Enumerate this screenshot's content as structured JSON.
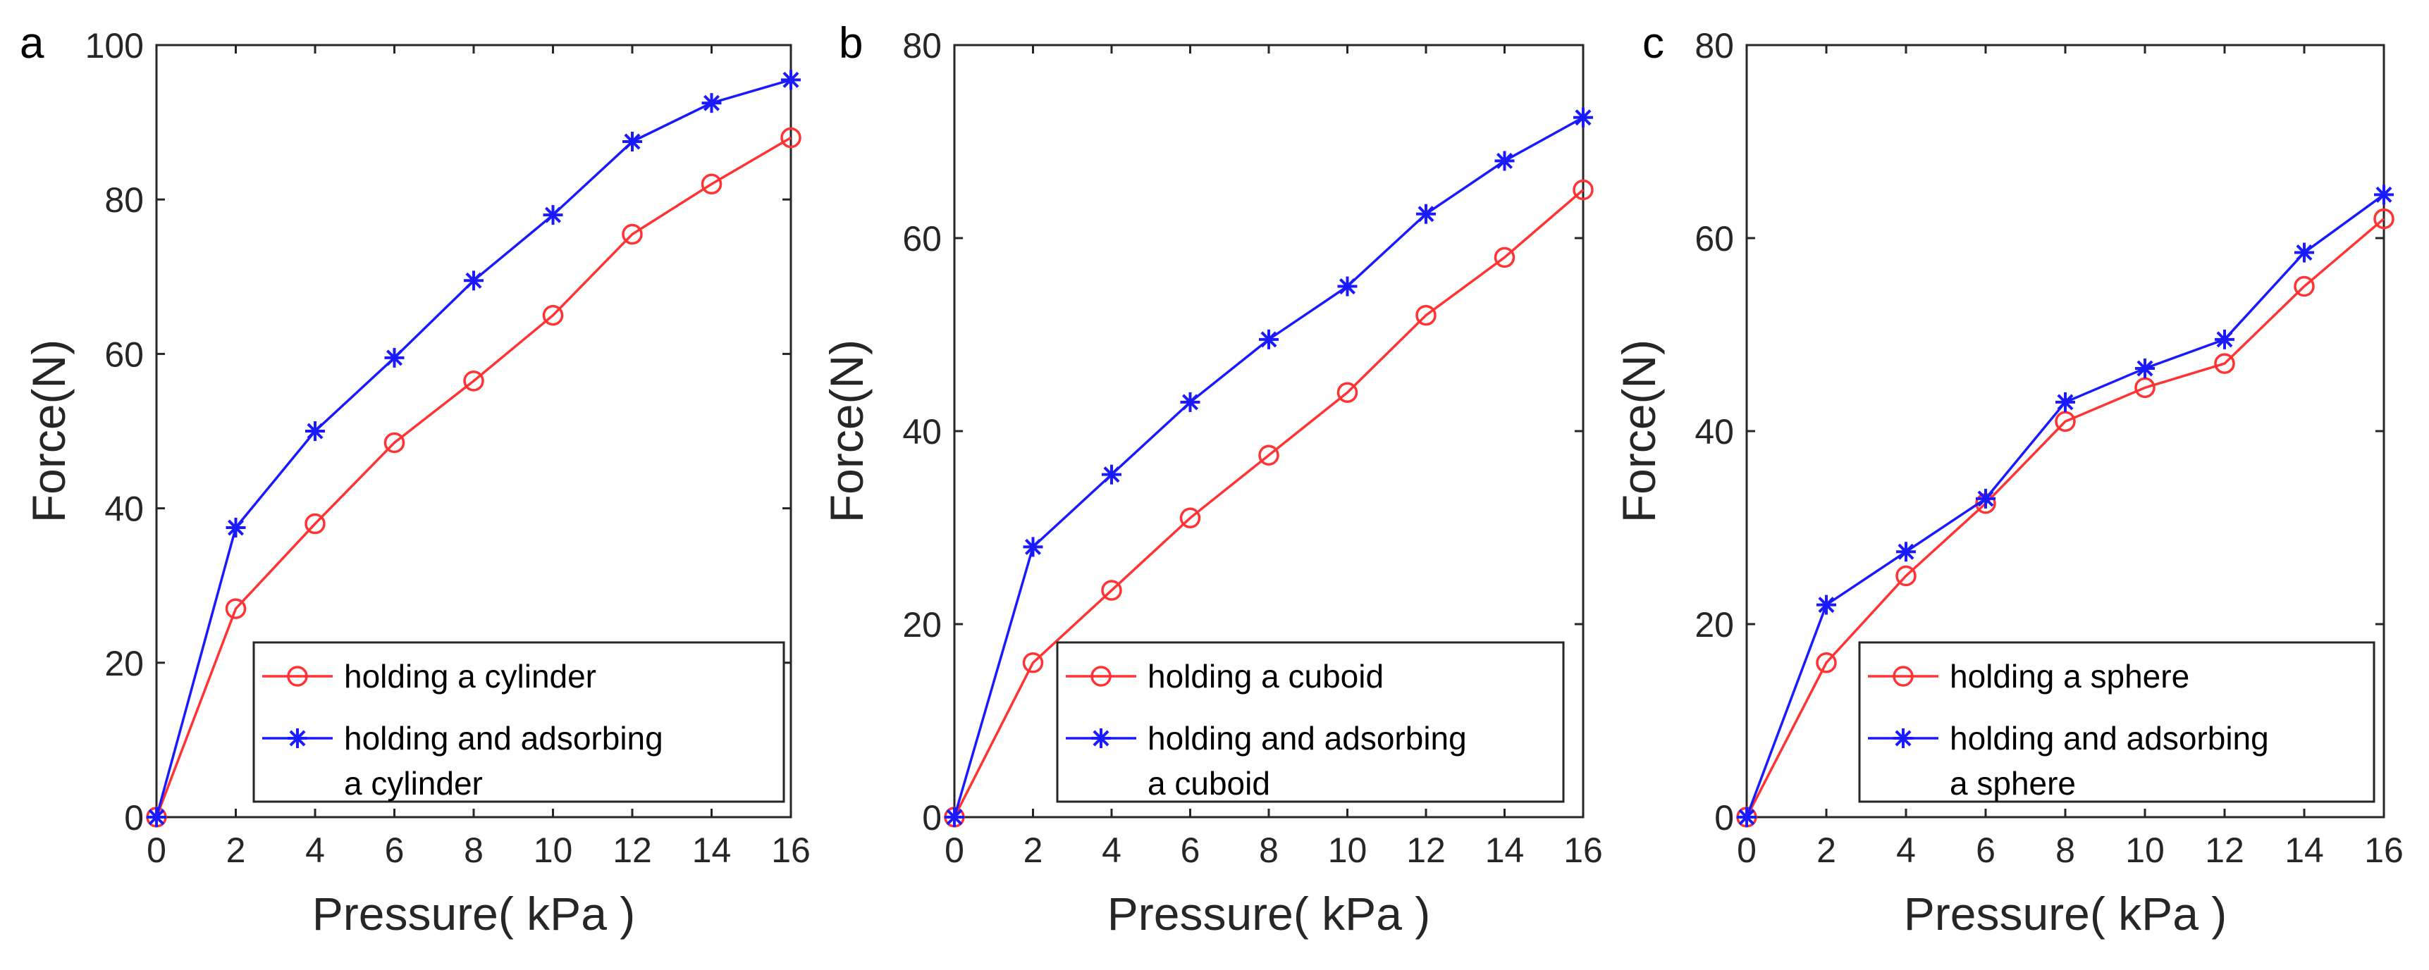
{
  "colors": {
    "series1": "#ff3333",
    "series2": "#1a1aff",
    "axis": "#262626"
  },
  "chart_data": [
    {
      "panel": "a",
      "type": "line",
      "xlabel": "Pressure( kPa )",
      "ylabel": "Force(N)",
      "xlim": [
        0,
        16
      ],
      "ylim": [
        0,
        100
      ],
      "xticks": [
        "0",
        "2",
        "4",
        "6",
        "8",
        "10",
        "12",
        "14",
        "16"
      ],
      "yticks": [
        "0",
        "20",
        "40",
        "60",
        "80",
        "100"
      ],
      "x": [
        0,
        2,
        4,
        6,
        8,
        10,
        12,
        14,
        16
      ],
      "legend_position": "lower-right",
      "series": [
        {
          "name": "holding a cylinder",
          "legend_lines": [
            "holding a cylinder"
          ],
          "marker": "circle",
          "values": [
            0,
            27,
            38,
            48.5,
            56.5,
            65,
            75.5,
            82,
            88
          ]
        },
        {
          "name": "holding and adsorbing a cylinder",
          "legend_lines": [
            "holding and adsorbing",
            "a cylinder"
          ],
          "marker": "star",
          "values": [
            0,
            37.5,
            50,
            59.5,
            69.5,
            78,
            87.5,
            92.5,
            95.5
          ]
        }
      ]
    },
    {
      "panel": "b",
      "type": "line",
      "xlabel": "Pressure( kPa )",
      "ylabel": "Force(N)",
      "xlim": [
        0,
        16
      ],
      "ylim": [
        0,
        80
      ],
      "xticks": [
        "0",
        "2",
        "4",
        "6",
        "8",
        "10",
        "12",
        "14",
        "16"
      ],
      "yticks": [
        "0",
        "20",
        "40",
        "60",
        "80"
      ],
      "x": [
        0,
        2,
        4,
        6,
        8,
        10,
        12,
        14,
        16
      ],
      "legend_position": "lower-right",
      "series": [
        {
          "name": "holding a cuboid",
          "legend_lines": [
            "holding a cuboid"
          ],
          "marker": "circle",
          "values": [
            0,
            16,
            23.5,
            31,
            37.5,
            44,
            52,
            58,
            65
          ]
        },
        {
          "name": "holding and adsorbing a cuboid",
          "legend_lines": [
            "holding and adsorbing",
            "a cuboid"
          ],
          "marker": "star",
          "values": [
            0,
            28,
            35.5,
            43,
            49.5,
            55,
            62.5,
            68,
            72.5
          ]
        }
      ]
    },
    {
      "panel": "c",
      "type": "line",
      "xlabel": "Pressure( kPa )",
      "ylabel": "Force(N)",
      "xlim": [
        0,
        16
      ],
      "ylim": [
        0,
        80
      ],
      "xticks": [
        "0",
        "2",
        "4",
        "6",
        "8",
        "10",
        "12",
        "14",
        "16"
      ],
      "yticks": [
        "0",
        "20",
        "40",
        "60",
        "80"
      ],
      "x": [
        0,
        2,
        4,
        6,
        8,
        10,
        12,
        14,
        16
      ],
      "legend_position": "lower-right",
      "series": [
        {
          "name": "holding a sphere",
          "legend_lines": [
            "holding a sphere"
          ],
          "marker": "circle",
          "values": [
            0,
            16,
            25,
            32.5,
            41,
            44.5,
            47,
            55,
            62
          ]
        },
        {
          "name": "holding and adsorbing a sphere",
          "legend_lines": [
            "holding and adsorbing",
            "a sphere"
          ],
          "marker": "star",
          "values": [
            0,
            22,
            27.5,
            33,
            43,
            46.5,
            49.5,
            58.5,
            64.5
          ]
        }
      ]
    }
  ]
}
